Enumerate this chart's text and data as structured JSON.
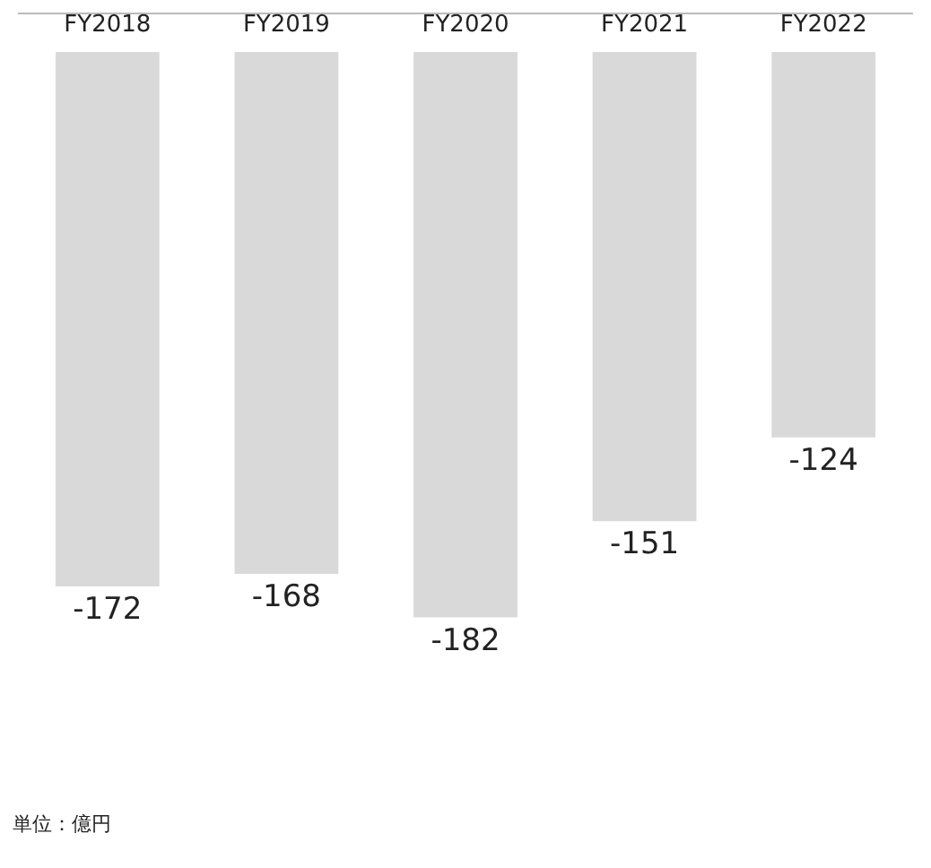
{
  "chart_data": {
    "type": "bar",
    "categories": [
      "FY2018",
      "FY2019",
      "FY2020",
      "FY2021",
      "FY2022"
    ],
    "values": [
      -172,
      -168,
      -182,
      -151,
      -124
    ],
    "color": "#d9d9d9",
    "data_labels": true,
    "annotations": [
      "単位：億円"
    ]
  }
}
